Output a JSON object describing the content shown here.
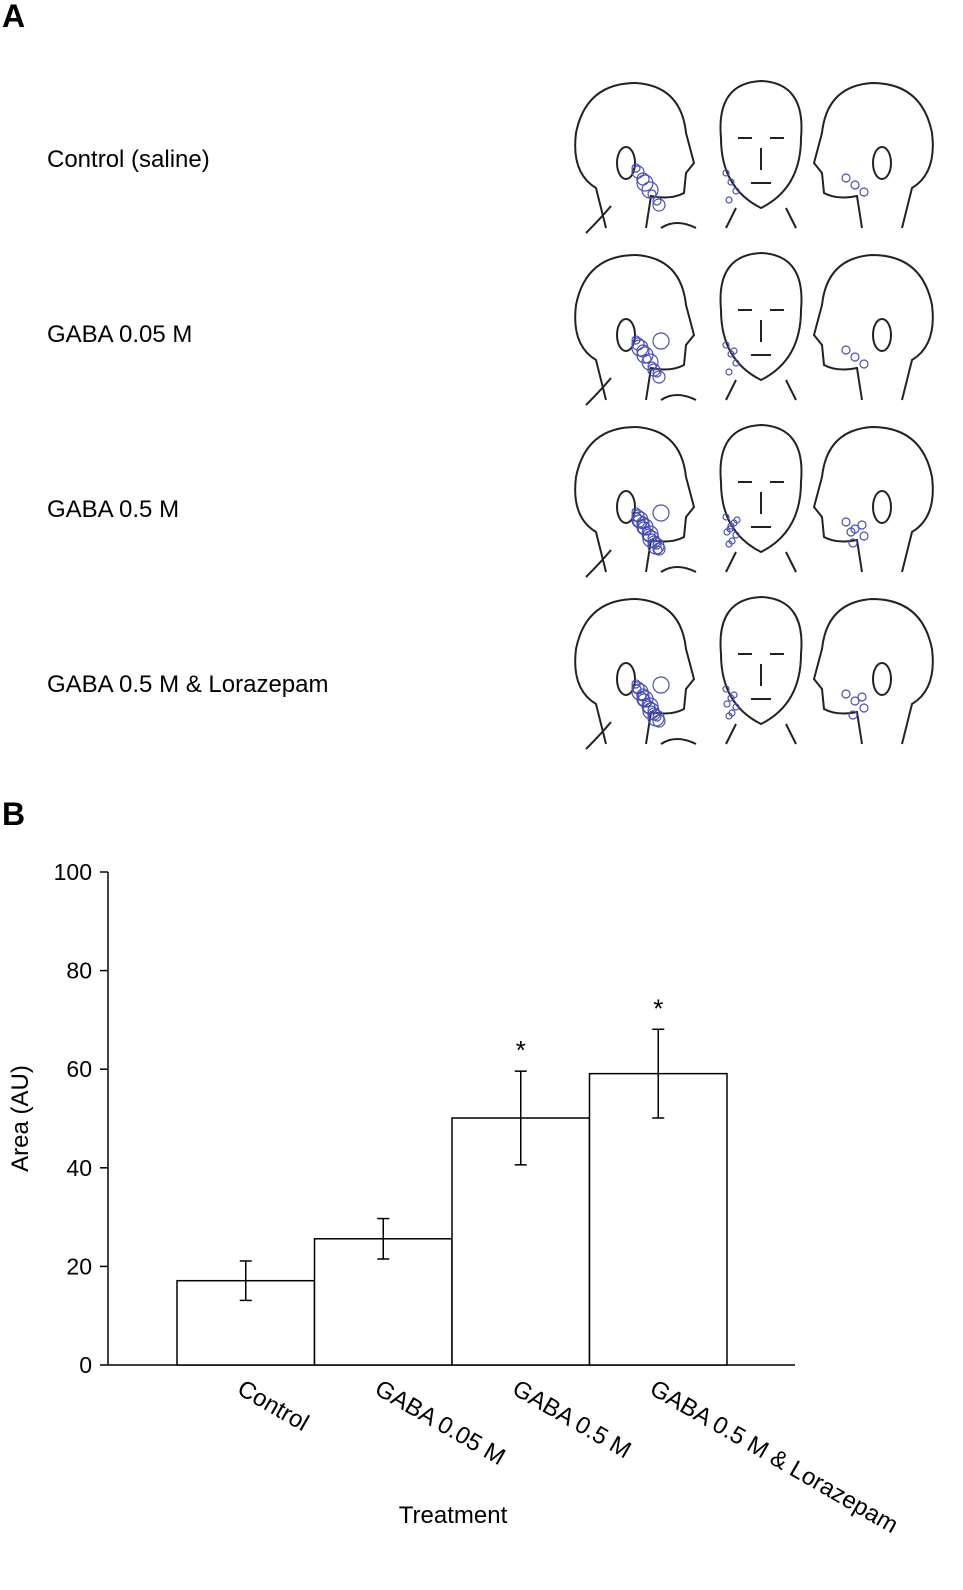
{
  "panel_a": {
    "label": "A",
    "rows": [
      {
        "label": "Control (saline)"
      },
      {
        "label": "GABA 0.05 M"
      },
      {
        "label": "GABA 0.5 M"
      },
      {
        "label": "GABA 0.5 M & Lorazepam"
      }
    ],
    "head_views": [
      "left-profile",
      "front",
      "right-profile"
    ],
    "pain_mark_color": "#4a4fb5"
  },
  "panel_b": {
    "label": "B"
  },
  "chart_data": {
    "type": "bar",
    "title": "",
    "xlabel": "Treatment",
    "ylabel": "Area (AU)",
    "ylim": [
      0,
      100
    ],
    "yticks": [
      0,
      20,
      40,
      60,
      80,
      100
    ],
    "categories": [
      "Control",
      "GABA 0.05 M",
      "GABA 0.5 M",
      "GABA 0.5 M & Lorazepam"
    ],
    "values": [
      17.1,
      25.6,
      50.1,
      59.1
    ],
    "error": [
      4.0,
      4.1,
      9.5,
      9.0
    ],
    "annotations": [
      "",
      "",
      "*",
      "*"
    ],
    "grid": false,
    "bar_color": "#ffffff"
  }
}
